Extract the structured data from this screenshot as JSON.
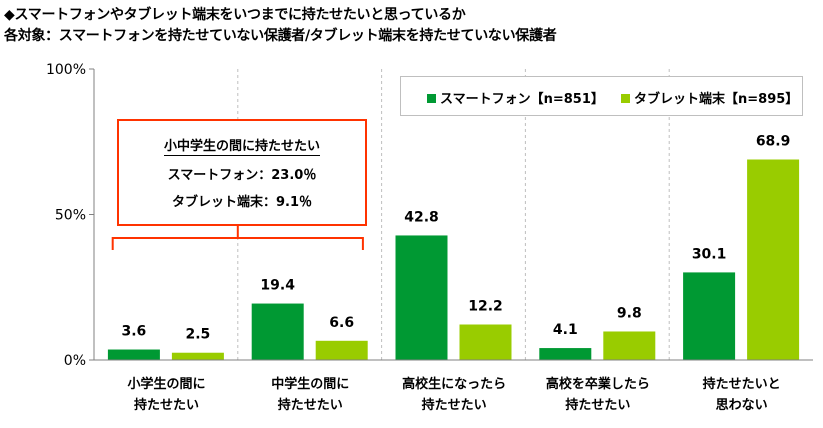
{
  "title_line1": "◆スマートフォンやタブレット端末をいつまでに持たせたいと思っているか",
  "title_line2": "各対象：スマートフォンを持たせていない保護者/タブレット端末を持たせていない保護者",
  "callout": {
    "heading": "小中学生の間に持たせたい",
    "line1": "スマートフォン：23.0％",
    "line2": "タブレット端末：9.1％"
  },
  "colors": {
    "smartphone": "#009933",
    "tablet": "#99cc00",
    "callout_border": "#ff3300"
  },
  "chart_data": {
    "type": "bar",
    "categories": [
      [
        "小学生の間に",
        "持たせたい"
      ],
      [
        "中学生の間に",
        "持たせたい"
      ],
      [
        "高校生になったら",
        "持たせたい"
      ],
      [
        "高校を卒業したら",
        "持たせたい"
      ],
      [
        "持たせたいと",
        "思わない"
      ]
    ],
    "series": [
      {
        "name": "スマートフォン【n=851】",
        "values": [
          3.6,
          19.4,
          42.8,
          4.1,
          30.1
        ],
        "labels": [
          "3.6",
          "19.4",
          "42.8",
          "4.1",
          "30.1"
        ]
      },
      {
        "name": "タブレット端末【n=895】",
        "values": [
          2.5,
          6.6,
          12.2,
          9.8,
          68.9
        ],
        "labels": [
          "2.5",
          "6.6",
          "12.2",
          "9.8",
          "68.9"
        ]
      }
    ],
    "ylim": [
      0,
      100
    ],
    "yticks": [
      0,
      50,
      100
    ],
    "ytick_labels": [
      "0%",
      "50%",
      "100%"
    ],
    "legend_position": "top-right"
  }
}
